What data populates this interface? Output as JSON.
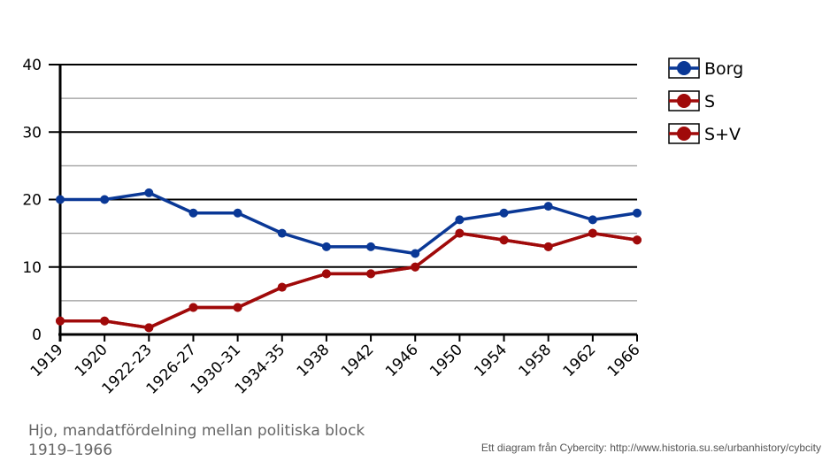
{
  "chart_data": {
    "type": "line",
    "categories": [
      "1919",
      "1920",
      "1922-23",
      "1926-27",
      "1930-31",
      "1934-35",
      "1938",
      "1942",
      "1946",
      "1950",
      "1954",
      "1958",
      "1962",
      "1966"
    ],
    "series": [
      {
        "name": "Borg",
        "color": "#0a3896",
        "values": [
          20,
          20,
          21,
          18,
          18,
          15,
          13,
          13,
          12,
          17,
          18,
          19,
          17,
          18
        ]
      },
      {
        "name": "S",
        "color": "#a00a0a",
        "values": [
          2,
          2,
          1,
          4,
          4,
          7,
          9,
          9,
          10,
          15,
          14,
          13,
          15,
          14
        ]
      },
      {
        "name": "S+V",
        "color": "#a00a0a",
        "values": [
          2,
          2,
          1,
          4,
          4,
          7,
          9,
          9,
          10,
          15,
          14,
          13,
          15,
          14
        ]
      }
    ],
    "yticks": [
      "0",
      "10",
      "20",
      "30",
      "40"
    ],
    "ylim": [
      0,
      40
    ],
    "grid": true,
    "legend_position": "right"
  },
  "caption": "Hjo, mandatfördelning  mellan politiska block 1919–1966",
  "credit": "Ett diagram från Cybercity: http://www.historia.su.se/urbanhistory/cybcity"
}
